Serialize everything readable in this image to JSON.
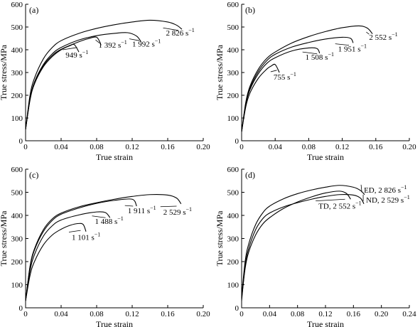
{
  "chart_data": [
    {
      "type": "line",
      "panel_label": "(a)",
      "xlabel": "True strain",
      "ylabel": "True stress/MPa",
      "xlim": [
        0,
        0.2
      ],
      "ylim": [
        0,
        600
      ],
      "xticks": [
        0,
        0.04,
        0.08,
        0.12,
        0.16,
        0.2
      ],
      "xtick_labels": [
        "0",
        "0.04",
        "0.08",
        "0.12",
        "0.16",
        "0.20"
      ],
      "yticks": [
        0,
        100,
        200,
        300,
        400,
        500,
        600
      ],
      "ytick_labels": [
        "0",
        "100",
        "200",
        "300",
        "400",
        "500",
        "600"
      ],
      "series": [
        {
          "label": "949 s",
          "unit_exp": "−1",
          "x": [
            0,
            0.005,
            0.01,
            0.02,
            0.03,
            0.04,
            0.05,
            0.055,
            0.06
          ],
          "y": [
            50,
            180,
            250,
            325,
            370,
            400,
            418,
            422,
            390
          ],
          "ann": [
            0.045,
            372
          ],
          "ann_end": [
            0.058,
            410
          ]
        },
        {
          "label": "1 392 s",
          "unit_exp": "−1",
          "x": [
            0,
            0.005,
            0.01,
            0.02,
            0.03,
            0.04,
            0.06,
            0.07,
            0.08,
            0.085
          ],
          "y": [
            50,
            180,
            252,
            330,
            375,
            402,
            435,
            448,
            455,
            420
          ],
          "ann": [
            0.082,
            415
          ],
          "ann_end": [
            0.083,
            430
          ]
        },
        {
          "label": "1 992 s",
          "unit_exp": "−1",
          "x": [
            0,
            0.005,
            0.01,
            0.02,
            0.03,
            0.04,
            0.06,
            0.08,
            0.1,
            0.115,
            0.125,
            0.13
          ],
          "y": [
            50,
            185,
            258,
            335,
            382,
            410,
            443,
            462,
            472,
            475,
            460,
            435
          ],
          "ann": [
            0.12,
            420
          ],
          "ann_end": [
            0.128,
            440
          ]
        },
        {
          "label": "2 826 s",
          "unit_exp": "−1",
          "x": [
            0,
            0.005,
            0.01,
            0.02,
            0.03,
            0.04,
            0.06,
            0.08,
            0.1,
            0.12,
            0.14,
            0.16,
            0.17,
            0.176
          ],
          "y": [
            50,
            200,
            275,
            360,
            410,
            440,
            472,
            494,
            510,
            522,
            530,
            522,
            508,
            490
          ],
          "ann": [
            0.158,
            468
          ],
          "ann_end": [
            0.172,
            485
          ]
        }
      ]
    },
    {
      "type": "line",
      "panel_label": "(b)",
      "xlabel": "True strain",
      "ylabel": "True stress/MPa",
      "xlim": [
        0,
        0.2
      ],
      "ylim": [
        0,
        600
      ],
      "xticks": [
        0,
        0.04,
        0.08,
        0.12,
        0.16,
        0.2
      ],
      "xtick_labels": [
        "0",
        "0.04",
        "0.08",
        "0.12",
        "0.16",
        "0.20"
      ],
      "yticks": [
        0,
        100,
        200,
        300,
        400,
        500,
        600
      ],
      "ytick_labels": [
        "0",
        "100",
        "200",
        "300",
        "400",
        "500",
        "600"
      ],
      "series": [
        {
          "label": "755 s",
          "unit_exp": "−1",
          "x": [
            0,
            0.005,
            0.01,
            0.02,
            0.03,
            0.035,
            0.04,
            0.045
          ],
          "y": [
            40,
            150,
            210,
            275,
            315,
            328,
            335,
            300
          ],
          "ann": [
            0.038,
            275
          ],
          "ann_end": [
            0.042,
            310
          ]
        },
        {
          "label": "1 508 s",
          "unit_exp": "−1",
          "x": [
            0,
            0.005,
            0.01,
            0.02,
            0.03,
            0.04,
            0.06,
            0.08,
            0.09,
            0.093
          ],
          "y": [
            40,
            160,
            225,
            295,
            340,
            365,
            395,
            408,
            405,
            385
          ],
          "ann": [
            0.076,
            362
          ],
          "ann_end": [
            0.09,
            382
          ]
        },
        {
          "label": "1 951 s",
          "unit_exp": "−1",
          "x": [
            0,
            0.005,
            0.01,
            0.02,
            0.03,
            0.04,
            0.06,
            0.08,
            0.1,
            0.12,
            0.13,
            0.133
          ],
          "y": [
            40,
            165,
            232,
            305,
            352,
            380,
            412,
            432,
            447,
            455,
            450,
            430
          ],
          "ann": [
            0.115,
            398
          ],
          "ann_end": [
            0.128,
            420
          ]
        },
        {
          "label": "2 552 s",
          "unit_exp": "−1",
          "x": [
            0,
            0.005,
            0.01,
            0.02,
            0.03,
            0.04,
            0.06,
            0.08,
            0.1,
            0.12,
            0.14,
            0.15,
            0.156
          ],
          "y": [
            40,
            170,
            240,
            315,
            362,
            390,
            430,
            458,
            480,
            497,
            505,
            495,
            470
          ],
          "ann": [
            0.152,
            450
          ],
          "ann_end": [
            0.152,
            468
          ]
        }
      ]
    },
    {
      "type": "line",
      "panel_label": "(c)",
      "xlabel": "True strain",
      "ylabel": "True stress/MPa",
      "xlim": [
        0,
        0.2
      ],
      "ylim": [
        0,
        600
      ],
      "xticks": [
        0,
        0.04,
        0.08,
        0.12,
        0.16,
        0.2
      ],
      "xtick_labels": [
        "0",
        "0.04",
        "0.08",
        "0.12",
        "0.16",
        "0.20"
      ],
      "yticks": [
        0,
        100,
        200,
        300,
        400,
        500,
        600
      ],
      "ytick_labels": [
        "0",
        "100",
        "200",
        "300",
        "400",
        "500",
        "600"
      ],
      "series": [
        {
          "label": "1 101 s",
          "unit_exp": "−1",
          "x": [
            0,
            0.005,
            0.01,
            0.02,
            0.03,
            0.04,
            0.05,
            0.06,
            0.065,
            0.068
          ],
          "y": [
            30,
            140,
            200,
            272,
            315,
            340,
            357,
            365,
            360,
            330
          ],
          "ann": [
            0.052,
            300
          ],
          "ann_end": [
            0.062,
            335
          ]
        },
        {
          "label": "1 488 s",
          "unit_exp": "−1",
          "x": [
            0,
            0.005,
            0.01,
            0.02,
            0.03,
            0.04,
            0.06,
            0.08,
            0.09,
            0.095
          ],
          "y": [
            30,
            160,
            230,
            310,
            355,
            380,
            402,
            415,
            412,
            390
          ],
          "ann": [
            0.078,
            370
          ],
          "ann_end": [
            0.09,
            390
          ]
        },
        {
          "label": "1 911 s",
          "unit_exp": "−1",
          "x": [
            0,
            0.005,
            0.01,
            0.02,
            0.03,
            0.04,
            0.06,
            0.08,
            0.1,
            0.12,
            0.125
          ],
          "y": [
            30,
            175,
            250,
            330,
            378,
            405,
            432,
            452,
            465,
            470,
            440
          ],
          "ann": [
            0.115,
            415
          ],
          "ann_end": [
            0.121,
            440
          ]
        },
        {
          "label": "2 529 s",
          "unit_exp": "−1",
          "x": [
            0,
            0.005,
            0.01,
            0.02,
            0.03,
            0.04,
            0.06,
            0.08,
            0.1,
            0.12,
            0.14,
            0.16,
            0.17,
            0.175
          ],
          "y": [
            30,
            180,
            255,
            338,
            385,
            410,
            437,
            455,
            470,
            482,
            490,
            488,
            475,
            450
          ],
          "ann": [
            0.155,
            410
          ],
          "ann_end": [
            0.17,
            440
          ]
        }
      ]
    },
    {
      "type": "line",
      "panel_label": "(d)",
      "xlabel": "True strain",
      "ylabel": "True stress/MPa",
      "xlim": [
        0,
        0.24
      ],
      "ylim": [
        0,
        600
      ],
      "xticks": [
        0,
        0.04,
        0.08,
        0.12,
        0.16,
        0.2,
        0.24
      ],
      "xtick_labels": [
        "0",
        "0.04",
        "0.08",
        "0.12",
        "0.16",
        "0.20",
        "0.24"
      ],
      "yticks": [
        0,
        100,
        200,
        300,
        400,
        500,
        600
      ],
      "ytick_labels": [
        "0",
        "100",
        "200",
        "300",
        "400",
        "500",
        "600"
      ],
      "series": [
        {
          "label": "ED, 2 826 s",
          "unit_exp": "−1",
          "x": [
            0,
            0.005,
            0.01,
            0.02,
            0.03,
            0.04,
            0.06,
            0.08,
            0.1,
            0.12,
            0.14,
            0.16,
            0.17,
            0.176
          ],
          "y": [
            50,
            200,
            275,
            360,
            410,
            440,
            472,
            494,
            510,
            522,
            530,
            522,
            508,
            490
          ],
          "ann": [
            0.175,
            505
          ],
          "ann_end": [
            0.172,
            500
          ]
        },
        {
          "label": "TD, 2 552 s",
          "unit_exp": "−1",
          "x": [
            0,
            0.005,
            0.01,
            0.02,
            0.03,
            0.04,
            0.06,
            0.08,
            0.1,
            0.12,
            0.14,
            0.15,
            0.156
          ],
          "y": [
            40,
            170,
            240,
            315,
            362,
            390,
            430,
            458,
            480,
            497,
            505,
            495,
            470
          ],
          "ann": [
            0.11,
            435
          ],
          "ann_end": [
            0.148,
            470
          ]
        },
        {
          "label": "ND, 2 529 s",
          "unit_exp": "−1",
          "x": [
            0,
            0.005,
            0.01,
            0.02,
            0.03,
            0.04,
            0.06,
            0.08,
            0.1,
            0.12,
            0.14,
            0.16,
            0.17,
            0.175
          ],
          "y": [
            30,
            180,
            255,
            338,
            385,
            410,
            437,
            455,
            470,
            482,
            490,
            488,
            475,
            450
          ],
          "ann": [
            0.178,
            462
          ],
          "ann_end": [
            0.174,
            462
          ]
        }
      ]
    }
  ]
}
